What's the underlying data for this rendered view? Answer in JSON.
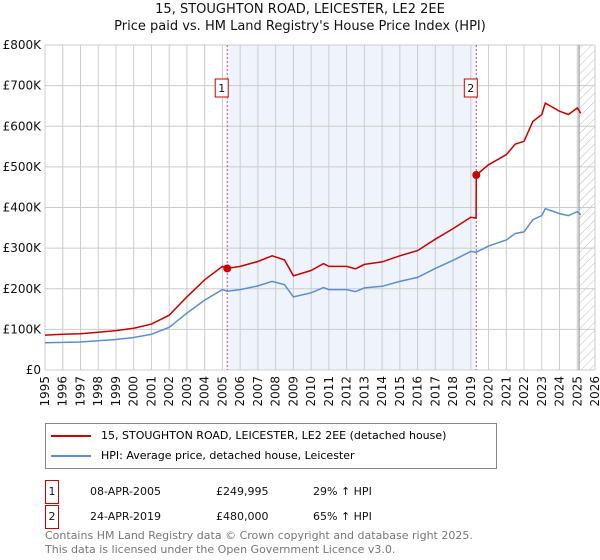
{
  "chart_data": {
    "type": "line",
    "title": "15, STOUGHTON ROAD, LEICESTER, LE2 2EE",
    "subtitle": "Price paid vs. HM Land Registry's House Price Index (HPI)",
    "xlim": [
      1995,
      2026
    ],
    "ylim": [
      0,
      800000
    ],
    "x_ticks": [
      "1995",
      "1996",
      "1997",
      "1998",
      "1999",
      "2000",
      "2001",
      "2002",
      "2003",
      "2004",
      "2005",
      "2006",
      "2007",
      "2008",
      "2009",
      "2010",
      "2011",
      "2012",
      "2013",
      "2014",
      "2015",
      "2016",
      "2017",
      "2018",
      "2019",
      "2020",
      "2021",
      "2022",
      "2023",
      "2024",
      "2025",
      "2026"
    ],
    "y_ticks": [
      {
        "v": 0,
        "label": "£0"
      },
      {
        "v": 100000,
        "label": "£100K"
      },
      {
        "v": 200000,
        "label": "£200K"
      },
      {
        "v": 300000,
        "label": "£300K"
      },
      {
        "v": 400000,
        "label": "£400K"
      },
      {
        "v": 500000,
        "label": "£500K"
      },
      {
        "v": 600000,
        "label": "£600K"
      },
      {
        "v": 700000,
        "label": "£700K"
      },
      {
        "v": 800000,
        "label": "£800K"
      }
    ],
    "grid": true,
    "x": [
      1995,
      1996,
      1997,
      1998,
      1999,
      2000,
      2001,
      2002,
      2003,
      2004,
      2005,
      2005.27,
      2006,
      2007,
      2007.8,
      2008.5,
      2009,
      2010,
      2010.7,
      2011,
      2012,
      2012.5,
      2013,
      2014,
      2015,
      2016,
      2017,
      2018,
      2019,
      2019.3,
      2019.31,
      2020,
      2021,
      2021.5,
      2022,
      2022.5,
      2023,
      2023.2,
      2024,
      2024.5,
      2025,
      2025.2
    ],
    "series": [
      {
        "name": "15, STOUGHTON ROAD, LEICESTER, LE2 2EE (detached house)",
        "color": "#cc0000",
        "values": [
          86000,
          88000,
          89000,
          93000,
          97000,
          103000,
          113000,
          135000,
          180000,
          222000,
          255000,
          249995,
          255000,
          267000,
          281000,
          271000,
          232000,
          245000,
          262000,
          255000,
          255000,
          249000,
          260000,
          266000,
          281000,
          294000,
          322000,
          348000,
          376000,
          374000,
          480000,
          505000,
          530000,
          556000,
          563000,
          612000,
          629000,
          657000,
          637000,
          629000,
          645000,
          632000
        ]
      },
      {
        "name": "HPI: Average price, detached house, Leicester",
        "color": "#5b8fd0",
        "values": [
          67000,
          68000,
          69000,
          72000,
          75000,
          80000,
          88000,
          105000,
          140000,
          172000,
          198000,
          194000,
          198000,
          207000,
          218000,
          210000,
          180000,
          190000,
          203000,
          198000,
          198000,
          193000,
          202000,
          206000,
          218000,
          228000,
          250000,
          270000,
          292000,
          290000,
          290000,
          305000,
          320000,
          336000,
          340000,
          370000,
          380000,
          397000,
          385000,
          380000,
          390000,
          382000
        ]
      }
    ],
    "sales": [
      {
        "id": "1",
        "x": 2005.27,
        "price": 249995,
        "date": "08-APR-2005",
        "price_label": "£249,995",
        "hpi_change": "29% ↑ HPI"
      },
      {
        "id": "2",
        "x": 2019.31,
        "price": 480000,
        "date": "24-APR-2019",
        "price_label": "£480,000",
        "hpi_change": "65% ↑ HPI"
      }
    ],
    "shaded_range": [
      2005.27,
      2019.31
    ],
    "projection_from": 2025.1,
    "legend_position": "bottom"
  },
  "footer": {
    "line1": "Contains HM Land Registry data © Crown copyright and database right 2025.",
    "line2": "This data is licensed under the Open Government Licence v3.0."
  }
}
